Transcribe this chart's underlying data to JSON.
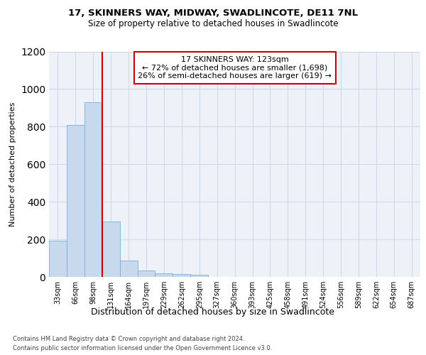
{
  "title1": "17, SKINNERS WAY, MIDWAY, SWADLINCOTE, DE11 7NL",
  "title2": "Size of property relative to detached houses in Swadlincote",
  "xlabel": "Distribution of detached houses by size in Swadlincote",
  "ylabel": "Number of detached properties",
  "bin_labels": [
    "33sqm",
    "66sqm",
    "98sqm",
    "131sqm",
    "164sqm",
    "197sqm",
    "229sqm",
    "262sqm",
    "295sqm",
    "327sqm",
    "360sqm",
    "393sqm",
    "425sqm",
    "458sqm",
    "491sqm",
    "524sqm",
    "556sqm",
    "589sqm",
    "622sqm",
    "654sqm",
    "687sqm"
  ],
  "bar_heights": [
    193,
    810,
    928,
    293,
    87,
    35,
    20,
    15,
    10,
    0,
    0,
    0,
    0,
    0,
    0,
    0,
    0,
    0,
    0,
    0,
    0
  ],
  "bar_color": "#c8d9ee",
  "bar_edge_color": "#7bafd4",
  "grid_color": "#d0d8e8",
  "vline_color": "#cc0000",
  "annotation_text": "17 SKINNERS WAY: 123sqm\n← 72% of detached houses are smaller (1,698)\n26% of semi-detached houses are larger (619) →",
  "annotation_box_color": "#ffffff",
  "annotation_box_edge": "#cc0000",
  "ylim": [
    0,
    1200
  ],
  "yticks": [
    0,
    200,
    400,
    600,
    800,
    1000,
    1200
  ],
  "footer1": "Contains HM Land Registry data © Crown copyright and database right 2024.",
  "footer2": "Contains public sector information licensed under the Open Government Licence v3.0.",
  "bg_color": "#eef2f8"
}
